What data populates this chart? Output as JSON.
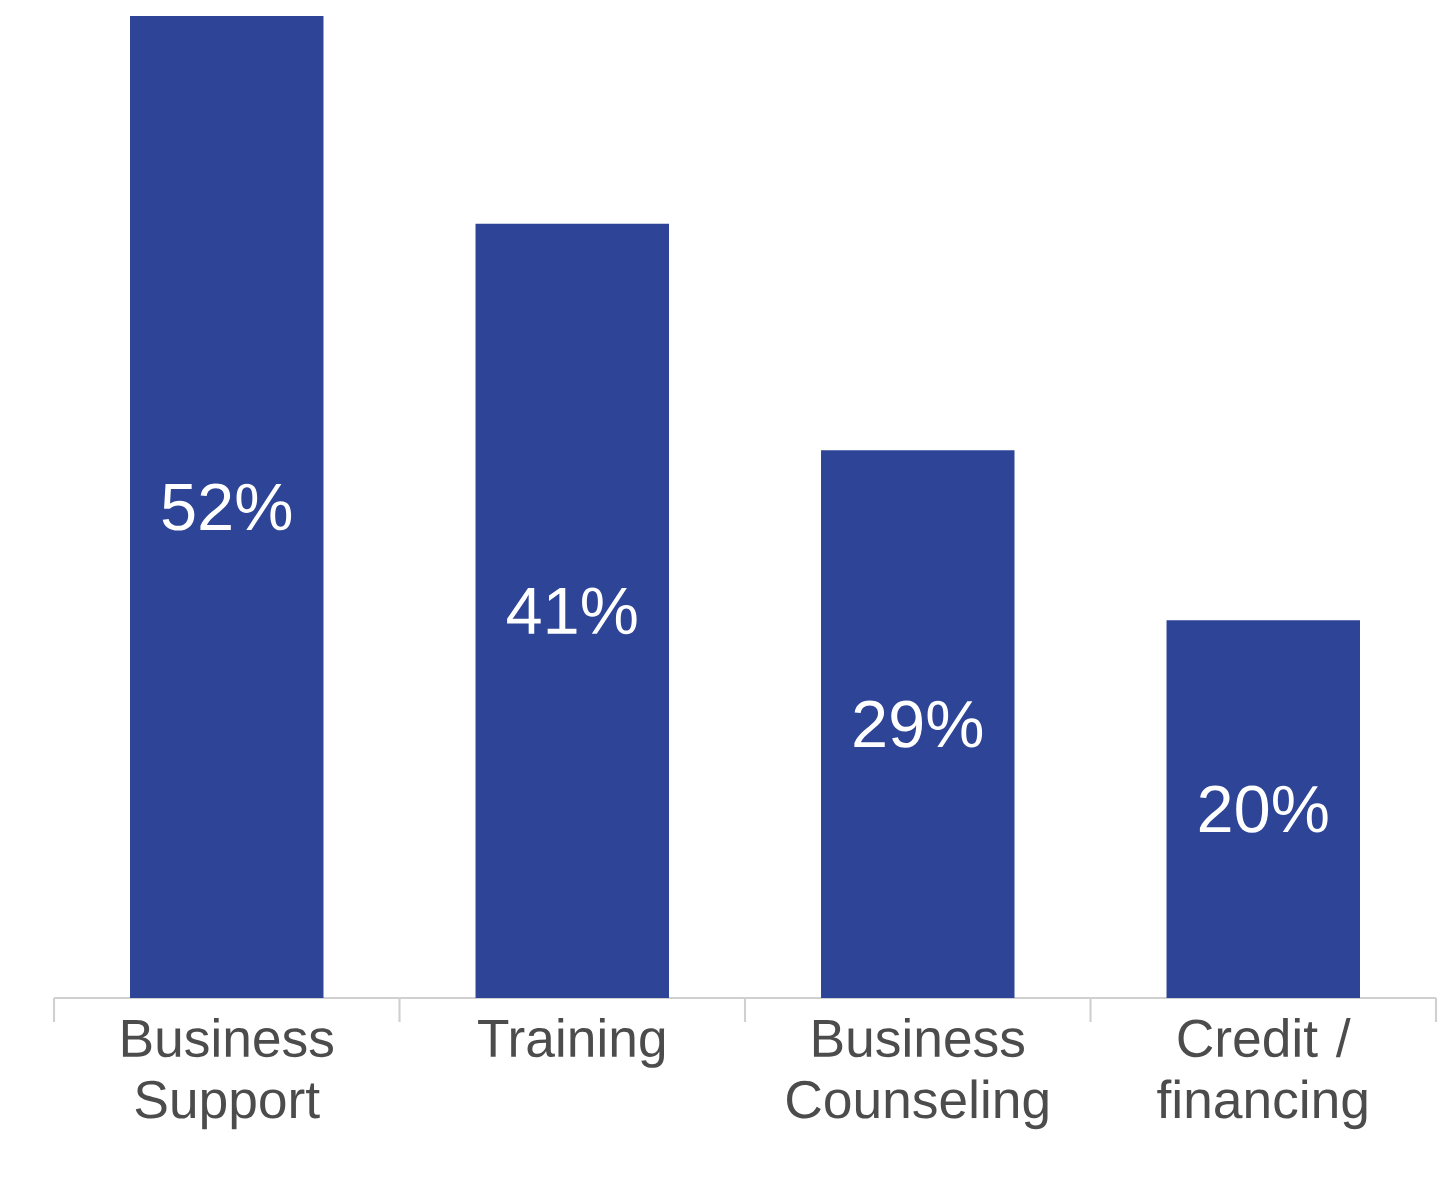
{
  "chart_data": {
    "type": "bar",
    "categories": [
      "Business Support",
      "Training",
      "Business Counseling",
      "Credit / financing"
    ],
    "values": [
      52,
      41,
      29,
      20
    ],
    "value_labels": [
      "52%",
      "41%",
      "29%",
      "20%"
    ],
    "color": "#2e4597"
  }
}
